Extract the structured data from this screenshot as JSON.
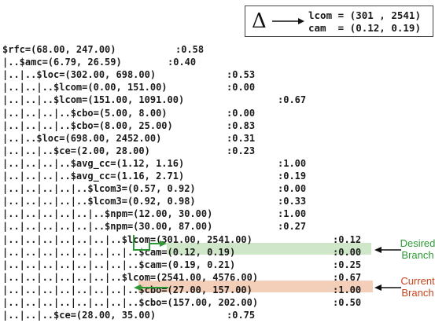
{
  "legend": {
    "symbol": "Δ",
    "lines": [
      "lcom = (301 , 2541)",
      "cam  = (0.12, 0.19)"
    ]
  },
  "rows": [
    {
      "text": "$rfc=(68.00, 247.00)",
      "value": ":0.58"
    },
    {
      "text": "|..$amc=(6.79, 26.59)",
      "value": ":0.40"
    },
    {
      "text": "|..|..$loc=(302.00, 698.00)",
      "value": ":0.53"
    },
    {
      "text": "|..|..|..$lcom=(0.00, 151.00)",
      "value": ":0.00"
    },
    {
      "text": "|..|..|..$lcom=(151.00, 1091.00)",
      "value": ":0.67"
    },
    {
      "text": "|..|..|..|..$cbo=(5.00, 8.00)",
      "value": ":0.00"
    },
    {
      "text": "|..|..|..|..$cbo=(8.00, 25.00)",
      "value": ":0.83"
    },
    {
      "text": "|..|..$loc=(698.00, 2452.00)",
      "value": ":0.31"
    },
    {
      "text": "|..|..|..$ce=(2.00, 28.00)",
      "value": ":0.23"
    },
    {
      "text": "|..|..|..|..$avg_cc=(1.12, 1.16)",
      "value": ":1.00"
    },
    {
      "text": "|..|..|..|..$avg_cc=(1.16, 2.71)",
      "value": ":0.19"
    },
    {
      "text": "|..|..|..|..|..$lcom3=(0.57, 0.92)",
      "value": ":0.00"
    },
    {
      "text": "|..|..|..|..|..$lcom3=(0.92, 0.98)",
      "value": ":0.33"
    },
    {
      "text": "|..|..|..|..|..|..$npm=(12.00, 30.00)",
      "value": ":1.00"
    },
    {
      "text": "|..|..|..|..|..|..$npm=(30.00, 87.00)",
      "value": ":0.27"
    },
    {
      "text": "|..|..|..|..|..|..|..$lcom=(301.00, 2541.00)",
      "value": ":0.12"
    },
    {
      "text": "|..|..|..|..|..|..|..|..$cam=(0.12, 0.19)",
      "value": ":0.00"
    },
    {
      "text": "|..|..|..|..|..|..|..|..$cam=(0.19, 0.21)",
      "value": ":0.25"
    },
    {
      "text": "|..|..|..|..|..|..|..$lcom=(2541.00, 4576.00)",
      "value": ":0.67"
    },
    {
      "text": "|..|..|..|..|..|..|..|..$cbo=(27.00, 157.00)",
      "value": ":1.00"
    },
    {
      "text": "|..|..|..|..|..|..|..|..$cbo=(157.00, 202.00)",
      "value": ":0.50"
    },
    {
      "text": "|..|..|..$ce=(28.00, 35.00)",
      "value": ":0.75"
    }
  ],
  "labels": {
    "desired": [
      "Desired",
      "Branch"
    ],
    "current": [
      "Current",
      "Branch"
    ]
  },
  "colors": {
    "desired": "#2e9a36",
    "current": "#c8441c",
    "desired_fill": "#cfe6c9",
    "current_fill": "#f3cfba"
  }
}
